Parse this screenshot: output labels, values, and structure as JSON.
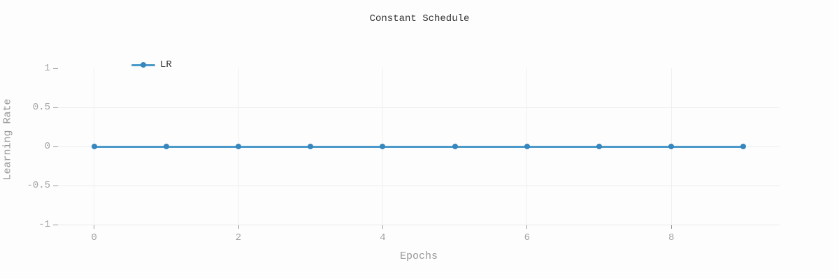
{
  "title": "Constant Schedule",
  "legend": {
    "label": "LR"
  },
  "colors": {
    "line": "#4c9aca",
    "marker": "#3787be",
    "grid_horizontal": "#ececec",
    "grid_vertical": "#f0f0f0",
    "axis_line": "#e9e9e9",
    "tick": "#999999",
    "tick_label": "#a3a3a3",
    "axis_title": "#999999",
    "title": "#333333",
    "background": "#fdfdfd"
  },
  "chart_data": {
    "type": "line",
    "title": "Constant Schedule",
    "xlabel": "Epochs",
    "ylabel": "Learning Rate",
    "x": [
      0,
      1,
      2,
      3,
      4,
      5,
      6,
      7,
      8,
      9
    ],
    "series": [
      {
        "name": "LR",
        "values": [
          0,
          0,
          0,
          0,
          0,
          0,
          0,
          0,
          0,
          0
        ]
      }
    ],
    "xlim": [
      -0.5,
      9.5
    ],
    "ylim": [
      -1,
      1
    ],
    "x_ticks": [
      0,
      2,
      4,
      6,
      8
    ],
    "y_ticks": [
      1,
      0.5,
      0,
      -0.5,
      -1
    ],
    "grid": true,
    "legend_position": "inside-top-left",
    "marker_style": "circle"
  }
}
